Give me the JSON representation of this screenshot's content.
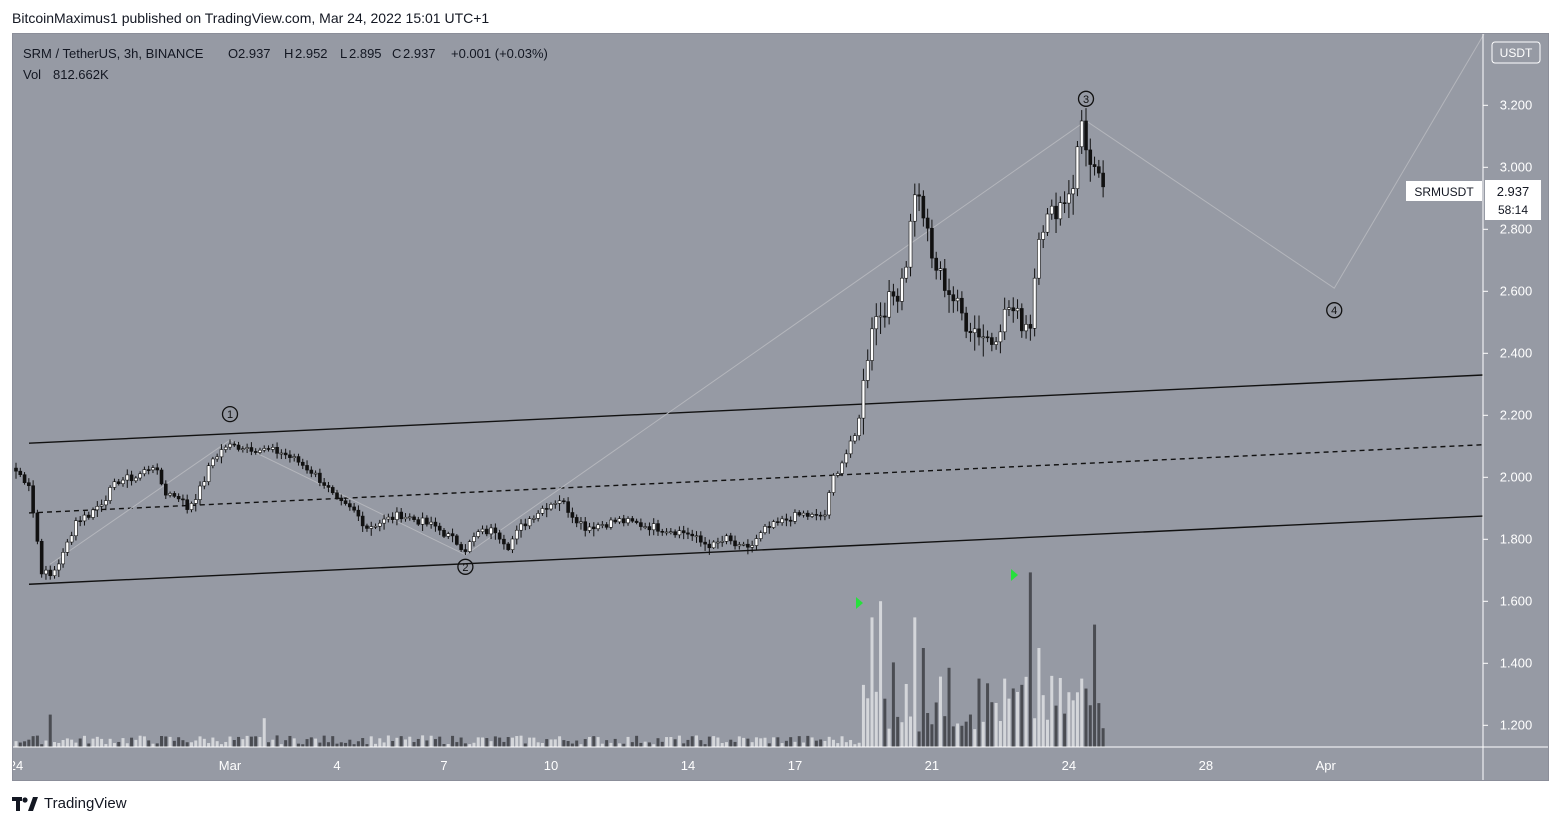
{
  "publisher": {
    "author": "BitcoinMaximus1",
    "middle": " published on ",
    "site": "TradingView.com",
    "date": ", Mar 24, 2022 15:01 UTC+1"
  },
  "legend": {
    "symbol": "SRM / TetherUS, 3h, BINANCE",
    "o_label": "O",
    "o": "2.937",
    "h_label": "H",
    "h": "2.952",
    "l_label": "L",
    "l": "2.895",
    "c_label": "C",
    "c": "2.937",
    "change": "+0.001 (+0.03%)",
    "vol_label": "Vol",
    "vol": "812.662K"
  },
  "currency_badge": "USDT",
  "price_tag": {
    "ticker": "SRMUSDT",
    "price": "2.937",
    "countdown": "58:14"
  },
  "wave_labels": [
    "1",
    "2",
    "3",
    "4"
  ],
  "footer_brand": "TradingView",
  "colors": {
    "background": "#969aa4",
    "grid_line": "#ffffff",
    "channel": "#111111",
    "wave_line": "#b4b6bc",
    "volume_up": "#d4d6da",
    "volume_down": "#4a4c52",
    "signal": "#27e03c"
  },
  "chart_data": {
    "type": "candlestick",
    "ylim": [
      1.13,
      3.43
    ],
    "y_ticks": [
      3.2,
      3.0,
      2.8,
      2.6,
      2.4,
      2.2,
      2.0,
      1.8,
      1.6,
      1.4,
      1.2
    ],
    "y_tick_labels": [
      "3.200",
      "3.000",
      "2.800",
      "2.600",
      "2.400",
      "2.200",
      "2.000",
      "1.800",
      "1.600",
      "1.400",
      "1.200"
    ],
    "x_ticks": [
      "24",
      "Mar",
      "4",
      "7",
      "10",
      "14",
      "17",
      "21",
      "24",
      "28",
      "Apr"
    ],
    "price_path": [
      [
        0,
        2.02
      ],
      [
        3,
        1.98
      ],
      [
        6,
        1.7
      ],
      [
        8,
        1.68
      ],
      [
        11,
        1.75
      ],
      [
        14,
        1.86
      ],
      [
        17,
        1.88
      ],
      [
        20,
        1.92
      ],
      [
        24,
        1.99
      ],
      [
        28,
        2.0
      ],
      [
        32,
        2.04
      ],
      [
        35,
        1.95
      ],
      [
        38,
        1.94
      ],
      [
        40,
        1.9
      ],
      [
        43,
        1.96
      ],
      [
        46,
        2.06
      ],
      [
        49,
        2.1
      ],
      [
        53,
        2.1
      ],
      [
        57,
        2.09
      ],
      [
        62,
        2.08
      ],
      [
        66,
        2.05
      ],
      [
        69,
        2.02
      ],
      [
        72,
        1.98
      ],
      [
        75,
        1.92
      ],
      [
        79,
        1.89
      ],
      [
        82,
        1.84
      ],
      [
        86,
        1.86
      ],
      [
        90,
        1.88
      ],
      [
        94,
        1.86
      ],
      [
        98,
        1.84
      ],
      [
        102,
        1.8
      ],
      [
        105,
        1.77
      ],
      [
        108,
        1.82
      ],
      [
        112,
        1.83
      ],
      [
        115,
        1.78
      ],
      [
        118,
        1.84
      ],
      [
        121,
        1.88
      ],
      [
        124,
        1.91
      ],
      [
        127,
        1.93
      ],
      [
        130,
        1.88
      ],
      [
        133,
        1.84
      ],
      [
        137,
        1.85
      ],
      [
        141,
        1.86
      ],
      [
        145,
        1.85
      ],
      [
        149,
        1.84
      ],
      [
        153,
        1.83
      ],
      [
        157,
        1.82
      ],
      [
        160,
        1.79
      ],
      [
        163,
        1.78
      ],
      [
        166,
        1.8
      ],
      [
        169,
        1.77
      ],
      [
        172,
        1.78
      ],
      [
        175,
        1.83
      ],
      [
        178,
        1.85
      ],
      [
        181,
        1.87
      ],
      [
        184,
        1.88
      ],
      [
        187,
        1.87
      ],
      [
        189,
        1.88
      ],
      [
        191,
        2.0
      ],
      [
        193,
        2.05
      ],
      [
        196,
        2.13
      ],
      [
        198,
        2.3
      ],
      [
        200,
        2.5
      ],
      [
        203,
        2.55
      ],
      [
        206,
        2.6
      ],
      [
        208,
        2.7
      ],
      [
        210,
        2.93
      ],
      [
        212,
        2.85
      ],
      [
        214,
        2.7
      ],
      [
        216,
        2.65
      ],
      [
        218,
        2.6
      ],
      [
        220,
        2.55
      ],
      [
        222,
        2.5
      ],
      [
        225,
        2.47
      ],
      [
        228,
        2.44
      ],
      [
        230,
        2.5
      ],
      [
        232,
        2.55
      ],
      [
        235,
        2.5
      ],
      [
        237,
        2.5
      ],
      [
        239,
        2.8
      ],
      [
        242,
        2.85
      ],
      [
        245,
        2.9
      ],
      [
        247,
        2.95
      ],
      [
        249,
        3.15
      ],
      [
        251,
        3.0
      ],
      [
        253,
        2.95
      ],
      [
        254,
        2.94
      ]
    ],
    "volume": [],
    "channel": {
      "upper": [
        [
          0,
          2.11
        ],
        [
          1,
          2.33
        ]
      ],
      "middle": [
        [
          0,
          1.885
        ],
        [
          1,
          2.105
        ]
      ],
      "lower": [
        [
          0,
          1.655
        ],
        [
          1,
          1.875
        ]
      ]
    },
    "wave_path": [
      {
        "label": "1",
        "x_index": 50,
        "price": 2.12
      },
      {
        "label": "2",
        "x_index": 105,
        "price": 1.75
      },
      {
        "label": "3",
        "x_index": 250,
        "price": 3.15
      },
      {
        "label": "4",
        "x_index": 308,
        "price": 2.61
      }
    ],
    "projection_end": {
      "x_index": 343,
      "price": 3.43
    },
    "last_close": 2.937
  }
}
